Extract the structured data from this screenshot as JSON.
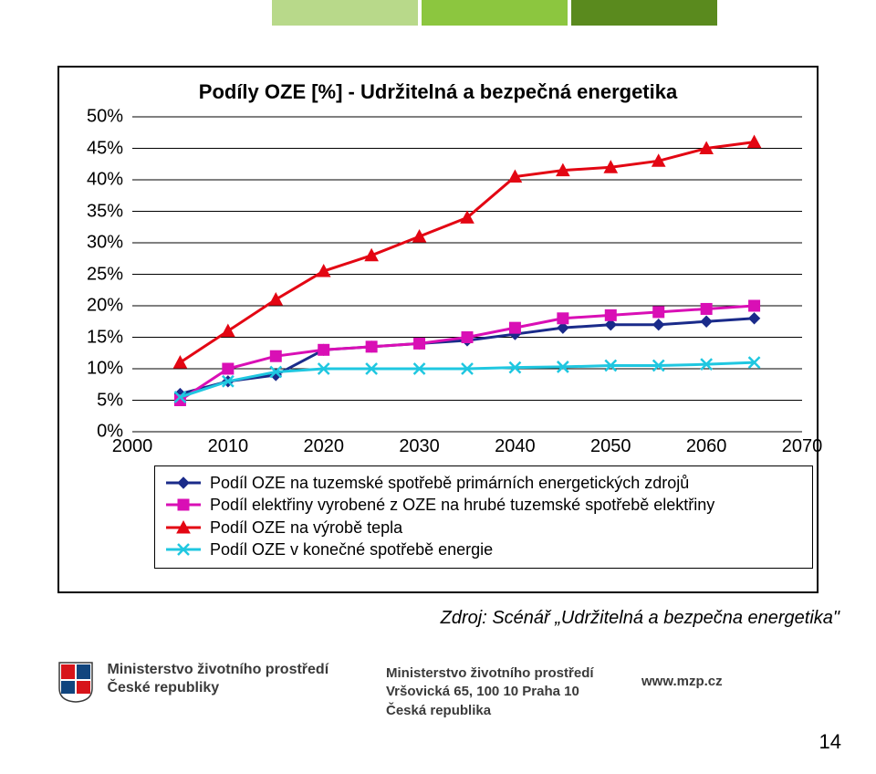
{
  "top_bars": {
    "colors": [
      "#b8d98a",
      "#8cc63f",
      "#5a8a1e"
    ]
  },
  "chart": {
    "title": "Podíly OZE [%] - Udržitelná a bezpečná energetika",
    "title_fontsize": 22,
    "background_color": "#ffffff",
    "gridline_color": "#000000",
    "ylim": [
      0,
      50
    ],
    "ytick_step": 5,
    "y_labels": [
      "0%",
      "5%",
      "10%",
      "15%",
      "20%",
      "25%",
      "30%",
      "35%",
      "40%",
      "45%",
      "50%"
    ],
    "x_categories": [
      "2000",
      "2010",
      "2020",
      "2030",
      "2040",
      "2050",
      "2060",
      "2070"
    ],
    "x_data_start": 2005,
    "x_data_end": 2065,
    "x_data_years": [
      2005,
      2010,
      2015,
      2020,
      2025,
      2030,
      2035,
      2040,
      2045,
      2050,
      2055,
      2060,
      2065
    ],
    "series": [
      {
        "name": "Podíl OZE na tuzemské spotřebě primárních energetických zdrojů",
        "color": "#1a2b8a",
        "marker": "diamond",
        "marker_fill": "#1a2b8a",
        "linewidth": 3,
        "values": [
          6,
          8,
          9,
          13,
          13.5,
          14,
          14.5,
          15.5,
          16.5,
          17,
          17,
          17.5,
          18
        ]
      },
      {
        "name": "Podíl elektřiny vyrobené z OZE na hrubé tuzemské spotřebě elektřiny",
        "color": "#d90fb5",
        "marker": "square",
        "marker_fill": "#d90fb5",
        "linewidth": 3,
        "values": [
          5,
          10,
          12,
          13,
          13.5,
          14,
          15,
          16.5,
          18,
          18.5,
          19,
          19.5,
          20
        ]
      },
      {
        "name": "Podíl OZE na výrobě tepla",
        "color": "#e30613",
        "marker": "triangle",
        "marker_fill": "#e30613",
        "linewidth": 3,
        "values": [
          11,
          16,
          21,
          25.5,
          28,
          31,
          34,
          40.5,
          41.5,
          42,
          43,
          45,
          46
        ]
      },
      {
        "name": "Podíl OZE v konečné spotřebě energie",
        "color": "#1fc7e0",
        "marker": "cross",
        "marker_fill": "#1fc7e0",
        "linewidth": 3,
        "values": [
          5.5,
          8,
          9.5,
          10,
          10,
          10,
          10,
          10.2,
          10.3,
          10.5,
          10.5,
          10.7,
          11
        ]
      }
    ],
    "legend_order": [
      0,
      1,
      2,
      3
    ]
  },
  "source_text": "Zdroj: Scénář „Udržitelná a bezpečna energetika\"",
  "footer": {
    "line1": "Ministerstvo životního prostředí",
    "line2": "České republiky",
    "mid1": "Ministerstvo životního prostředí",
    "mid2": "Vršovická 65, 100 10 Praha 10",
    "mid3": "Česká republika",
    "url": "www.mzp.cz",
    "emblem_colors": {
      "red": "#d7141a",
      "blue": "#11457e",
      "white": "#ffffff"
    }
  },
  "page_number": "14"
}
